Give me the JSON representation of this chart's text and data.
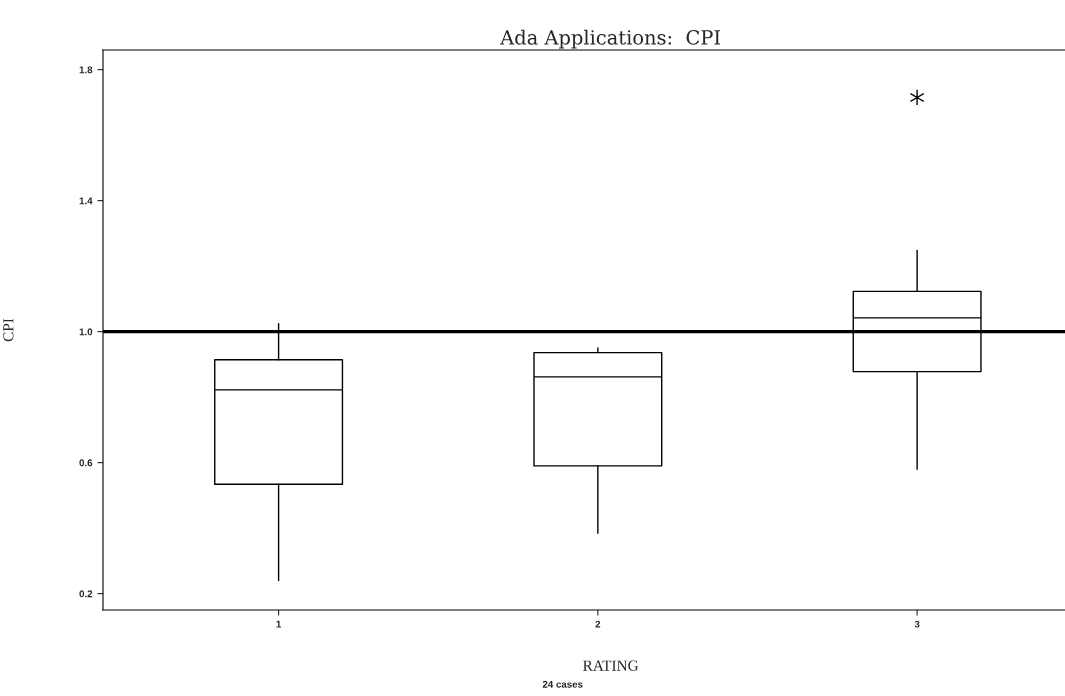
{
  "chart_data": {
    "type": "box",
    "title": "Ada Applications:  CPI",
    "xlabel": "RATING",
    "ylabel": "CPI",
    "categories": [
      "1",
      "2",
      "3"
    ],
    "boxes": [
      {
        "low": 0.24,
        "q1": 0.534,
        "median": 0.822,
        "q3": 0.914,
        "high": 1.024
      },
      {
        "low": 0.384,
        "q1": 0.59,
        "median": 0.862,
        "q3": 0.936,
        "high": 0.95
      },
      {
        "low": 0.58,
        "q1": 0.878,
        "median": 1.042,
        "q3": 1.123,
        "high": 1.248,
        "outliers": [
          1.715
        ]
      }
    ],
    "ylim": [
      0.15,
      1.86
    ],
    "yticks": [
      0.2,
      0.6,
      {
        "value": 1.0,
        "label": "1.0"
      },
      1.4,
      1.8
    ],
    "ref_lines": [
      {
        "axis": "y",
        "value": 1.0
      }
    ],
    "annotations": [
      "24 cases"
    ],
    "grid": false
  }
}
